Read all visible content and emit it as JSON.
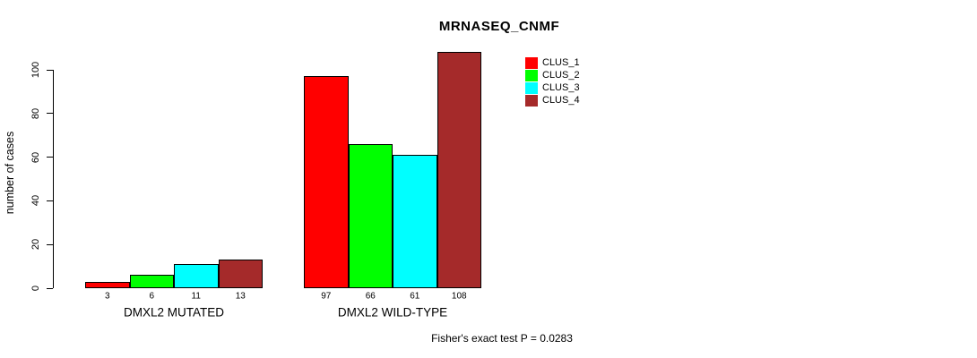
{
  "chart_data": {
    "type": "bar",
    "title": "MRNASEQ_CNMF",
    "xlabel": "",
    "ylabel": "number of cases",
    "ylim": [
      0,
      100
    ],
    "yticks": [
      0,
      20,
      40,
      60,
      80,
      100
    ],
    "grid": false,
    "legend_position": "top-right",
    "bar_value_labels_shown": true,
    "categories": [
      "DMXL2 MUTATED",
      "DMXL2 WILD-TYPE"
    ],
    "series": [
      {
        "name": "CLUS_1",
        "color": "#ff0000",
        "values": [
          3,
          97
        ]
      },
      {
        "name": "CLUS_2",
        "color": "#00ff00",
        "values": [
          6,
          66
        ]
      },
      {
        "name": "CLUS_3",
        "color": "#00ffff",
        "values": [
          11,
          61
        ]
      },
      {
        "name": "CLUS_4",
        "color": "#a52a2a",
        "values": [
          13,
          108
        ]
      }
    ],
    "groups": [
      {
        "label": "DMXL2 MUTATED",
        "values": [
          3,
          6,
          11,
          13
        ]
      },
      {
        "label": "DMXL2 WILD-TYPE",
        "values": [
          97,
          66,
          61,
          108
        ]
      }
    ]
  },
  "footer": {
    "text": "Fisher's exact test P = 0.0283"
  }
}
